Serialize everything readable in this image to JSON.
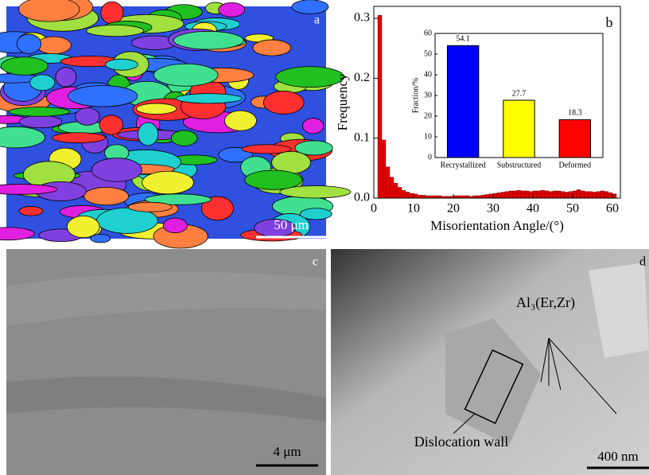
{
  "panels": {
    "a": {
      "label": "a",
      "scale_bar": "50 μm"
    },
    "b": {
      "label": "b"
    },
    "c": {
      "label": "c",
      "scale_bar": "4 μm"
    },
    "d": {
      "label": "d",
      "scale_bar": "400 nm",
      "annotations": [
        "Al₃(Er,Zr)",
        "Dislocation wall"
      ]
    }
  },
  "chart_data": [
    {
      "type": "histogram",
      "x_label": "Misorientation Angle/(°)",
      "y_label": "Frequency",
      "color": "#e00000",
      "bins": [
        1,
        2,
        3,
        4,
        5,
        6,
        7,
        8,
        9,
        10,
        11,
        12,
        13,
        14,
        15,
        16,
        17,
        18,
        19,
        20,
        21,
        22,
        23,
        24,
        25,
        26,
        27,
        28,
        29,
        30,
        31,
        32,
        33,
        34,
        35,
        36,
        37,
        38,
        39,
        40,
        41,
        42,
        43,
        44,
        45,
        46,
        47,
        48,
        49,
        50,
        51,
        52,
        53,
        54,
        55,
        56,
        57,
        58,
        59,
        60,
        61
      ],
      "counts": [
        0.305,
        0.097,
        0.052,
        0.035,
        0.025,
        0.018,
        0.013,
        0.01,
        0.008,
        0.007,
        0.005,
        0.005,
        0.004,
        0.004,
        0.004,
        0.004,
        0.003,
        0.003,
        0.003,
        0.004,
        0.004,
        0.004,
        0.004,
        0.003,
        0.004,
        0.004,
        0.005,
        0.006,
        0.007,
        0.008,
        0.009,
        0.01,
        0.011,
        0.012,
        0.012,
        0.013,
        0.012,
        0.012,
        0.011,
        0.012,
        0.012,
        0.013,
        0.012,
        0.011,
        0.012,
        0.012,
        0.011,
        0.01,
        0.011,
        0.012,
        0.014,
        0.012,
        0.011,
        0.011,
        0.01,
        0.011,
        0.012,
        0.011,
        0.009,
        0.007
      ],
      "xlim": [
        0,
        62
      ],
      "xticks": [
        0,
        10,
        20,
        30,
        40,
        50,
        60
      ],
      "ylim": [
        0,
        0.32
      ],
      "yticks": [
        {
          "value": 0,
          "label": "0.0"
        },
        0.1,
        0.2,
        0.3
      ]
    },
    {
      "type": "bar",
      "y_label": "Fraction/%",
      "categories": [
        "Recrystallized",
        "Substructured",
        "Deformed"
      ],
      "values": [
        54.1,
        27.7,
        18.3
      ],
      "colors": [
        "#0000ff",
        "#ffff00",
        "#ff0000"
      ],
      "ylim": [
        0,
        60
      ],
      "yticks": [
        0,
        10,
        20,
        30,
        40,
        50,
        60
      ]
    }
  ]
}
